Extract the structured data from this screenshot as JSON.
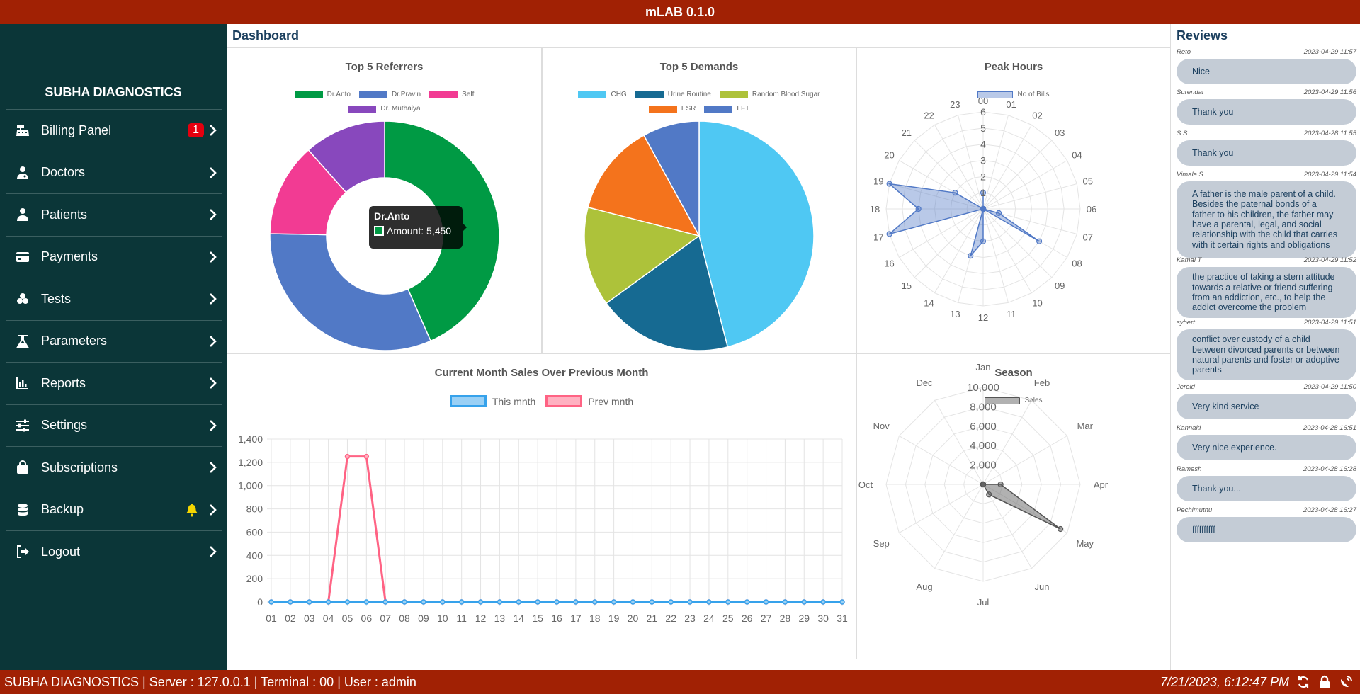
{
  "app": {
    "title": "mLAB 0.1.0"
  },
  "sidebar": {
    "brand": "SUBHA DIAGNOSTICS",
    "items": [
      {
        "label": "Billing Panel",
        "icon": "cash-register-icon",
        "badge": "1"
      },
      {
        "label": "Doctors",
        "icon": "doctor-icon"
      },
      {
        "label": "Patients",
        "icon": "user-icon"
      },
      {
        "label": "Payments",
        "icon": "credit-card-icon"
      },
      {
        "label": "Tests",
        "icon": "vials-icon"
      },
      {
        "label": "Parameters",
        "icon": "flask-icon"
      },
      {
        "label": "Reports",
        "icon": "bar-chart-icon"
      },
      {
        "label": "Settings",
        "icon": "sliders-icon"
      },
      {
        "label": "Subscriptions",
        "icon": "bag-icon"
      },
      {
        "label": "Backup",
        "icon": "database-icon",
        "bell": true
      },
      {
        "label": "Logout",
        "icon": "logout-icon"
      }
    ]
  },
  "main": {
    "title": "Dashboard"
  },
  "charts": {
    "referrers": {
      "title": "Top 5 Referrers"
    },
    "demands": {
      "title": "Top 5 Demands"
    },
    "peak": {
      "title": "Peak Hours"
    },
    "sales": {
      "title": "Current Month Sales Over Previous Month"
    },
    "season": {
      "title": "Season"
    }
  },
  "tooltip": {
    "title": "Dr.Anto",
    "label": "Amount: 5,450"
  },
  "chart_data": [
    {
      "id": "referrers",
      "type": "pie",
      "donut": true,
      "title": "Top 5 Referrers",
      "categories": [
        "Dr.Anto",
        "Dr.Pravin",
        "Self",
        "Dr. Muthaiya"
      ],
      "values": [
        5450,
        4000,
        1650,
        1450
      ],
      "colors": [
        "#009a44",
        "#5179c6",
        "#f23b93",
        "#8848bd"
      ]
    },
    {
      "id": "demands",
      "type": "pie",
      "title": "Top 5 Demands",
      "categories": [
        "CHG",
        "Urine Routine",
        "Random Blood Sugar",
        "ESR",
        "LFT"
      ],
      "values": [
        46,
        19,
        14,
        13,
        8
      ],
      "colors": [
        "#4fc8f3",
        "#166a92",
        "#adc23a",
        "#f4731c",
        "#5179c6"
      ]
    },
    {
      "id": "peak",
      "type": "radar",
      "title": "Peak Hours",
      "series_name": "No of Bills",
      "labels": [
        "00",
        "01",
        "02",
        "03",
        "04",
        "05",
        "06",
        "07",
        "08",
        "09",
        "10",
        "11",
        "12",
        "13",
        "14",
        "15",
        "16",
        "17",
        "18",
        "19",
        "20",
        "21",
        "22",
        "23"
      ],
      "values": [
        1,
        0,
        0,
        0,
        0,
        0,
        0,
        1,
        4,
        0,
        0,
        0,
        2,
        3,
        0,
        0,
        0,
        6,
        4,
        6,
        2,
        0,
        0,
        0
      ],
      "ticks": [
        1,
        2,
        3,
        4,
        5,
        6
      ],
      "rmax": 6,
      "color": "#5179c6",
      "fill": "rgba(81,121,198,0.4)"
    },
    {
      "id": "sales",
      "type": "line",
      "title": "Current Month Sales Over Previous Month",
      "categories": [
        "01",
        "02",
        "03",
        "04",
        "05",
        "06",
        "07",
        "08",
        "09",
        "10",
        "11",
        "12",
        "13",
        "14",
        "15",
        "16",
        "17",
        "18",
        "19",
        "20",
        "21",
        "22",
        "23",
        "24",
        "25",
        "26",
        "27",
        "28",
        "29",
        "30",
        "31"
      ],
      "series": [
        {
          "name": "This mnth",
          "color": "#36a2eb",
          "fill": "#9ad0f5",
          "values": [
            0,
            0,
            0,
            0,
            0,
            0,
            0,
            0,
            0,
            0,
            0,
            0,
            0,
            0,
            0,
            0,
            0,
            0,
            0,
            0,
            0,
            0,
            0,
            0,
            0,
            0,
            0,
            0,
            0,
            0,
            0
          ]
        },
        {
          "name": "Prev mnth",
          "color": "#ff6384",
          "fill": "#ffb1c1",
          "values": [
            0,
            0,
            0,
            0,
            1250,
            1250,
            0,
            0,
            0,
            0,
            0,
            0,
            0,
            0,
            0,
            0,
            0,
            0,
            0,
            0,
            0,
            0,
            0,
            0,
            0,
            0,
            0,
            0,
            0,
            0,
            0
          ]
        }
      ],
      "yticks": [
        "0",
        "200",
        "400",
        "600",
        "800",
        "1,000",
        "1,200",
        "1,400"
      ],
      "ylim": [
        0,
        1400
      ],
      "grid": true
    },
    {
      "id": "season",
      "type": "radar",
      "title": "Season",
      "series_name": "Sales",
      "labels": [
        "Jan",
        "Feb",
        "Mar",
        "Apr",
        "May",
        "Jun",
        "Jul",
        "Aug",
        "Sep",
        "Oct",
        "Nov",
        "Dec"
      ],
      "values": [
        0,
        0,
        0,
        1800,
        9200,
        1200,
        0,
        0,
        0,
        0,
        0,
        0
      ],
      "ticks": [
        "2,000",
        "4,000",
        "6,000",
        "8,000",
        "10,000"
      ],
      "tick_values": [
        2000,
        4000,
        6000,
        8000,
        10000
      ],
      "rmax": 10000,
      "color": "#555555",
      "fill": "rgba(100,100,100,0.5)"
    }
  ],
  "reviews": {
    "title": "Reviews",
    "items": [
      {
        "name": "Reto",
        "time": "2023-04-29 11:57",
        "text": "Nice"
      },
      {
        "name": "Surendar",
        "time": "2023-04-29 11:56",
        "text": "Thank you"
      },
      {
        "name": "S S",
        "time": "2023-04-28 11:55",
        "text": "Thank you"
      },
      {
        "name": "Vimala S",
        "time": "2023-04-29 11:54",
        "text": "A father is the male parent of a child. Besides the paternal bonds of a father to his children, the father may have a parental, legal, and social relationship with the child that carries with it certain rights and obligations"
      },
      {
        "name": "Kamal T",
        "time": "2023-04-29 11:52",
        "text": "the practice of taking a stern attitude towards a relative or friend suffering from an addiction, etc., to help the addict overcome the problem"
      },
      {
        "name": "sybert",
        "time": "2023-04-29 11:51",
        "text": "conflict over custody of a child between divorced parents or between natural parents and foster or adoptive parents"
      },
      {
        "name": "Jerold",
        "time": "2023-04-29 11:50",
        "text": "Very kind service"
      },
      {
        "name": "Kannaki",
        "time": "2023-04-28 16:51",
        "text": "Very nice experience."
      },
      {
        "name": "Ramesh",
        "time": "2023-04-28 16:28",
        "text": "Thank you..."
      },
      {
        "name": "Pechimuthu",
        "time": "2023-04-28 16:27",
        "text": "ffffffffff"
      }
    ]
  },
  "statusbar": {
    "info": "SUBHA DIAGNOSTICS | Server : 127.0.0.1 | Terminal : 00 | User : admin",
    "datetime": "7/21/2023, 6:12:47 PM",
    "icons": [
      "sync-icon",
      "lock-icon",
      "satellite-dish-icon"
    ]
  }
}
